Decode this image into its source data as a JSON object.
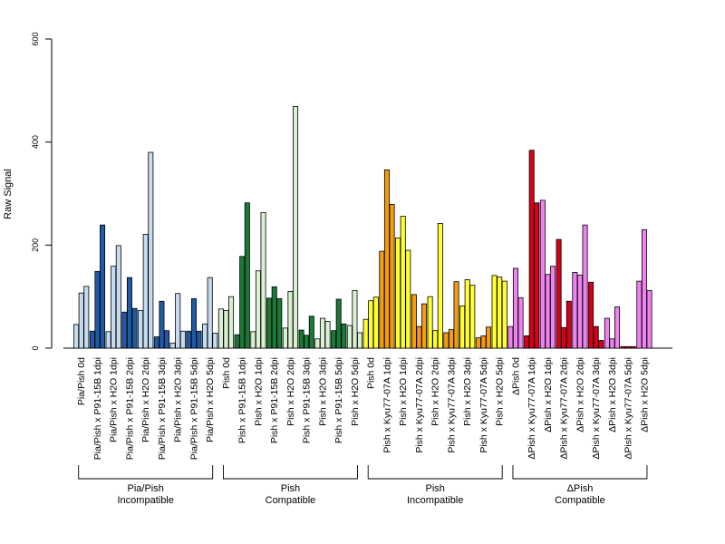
{
  "chart_data": {
    "type": "bar",
    "ylabel": "Raw Signal",
    "ylim": [
      0,
      600
    ],
    "yticks": [
      0,
      200,
      400,
      600
    ],
    "colors": {
      "light_blue": "#C6DBEF",
      "dark_blue": "#1F5AA6",
      "light_green": "#D9F0D3",
      "dark_green": "#1B7837",
      "yellow": "#FFFF33",
      "orange": "#F39C12",
      "red": "#D7001A",
      "pink": "#EE82EE"
    },
    "categories": [
      {
        "label": "Pia/Pish 0d",
        "color": "light_blue",
        "values": [
          46,
          107,
          120
        ]
      },
      {
        "label": "Pia/Pish x P91-15B 1dpi",
        "color": "dark_blue",
        "values": [
          33,
          149,
          239
        ]
      },
      {
        "label": "Pia/Pish x H2O 1dpi",
        "color": "light_blue",
        "values": [
          32,
          159,
          199
        ]
      },
      {
        "label": "Pia/Pish x P91-15B 2dpi",
        "color": "dark_blue",
        "values": [
          70,
          137,
          77
        ]
      },
      {
        "label": "Pia/Pish x H2O 2dpi",
        "color": "light_blue",
        "values": [
          73,
          221,
          380
        ]
      },
      {
        "label": "Pia/Pish x P91-15B 3dpi",
        "color": "dark_blue",
        "values": [
          22,
          91,
          34
        ]
      },
      {
        "label": "Pia/Pish x H2O 3dpi",
        "color": "light_blue",
        "values": [
          10,
          106,
          33
        ]
      },
      {
        "label": "Pia/Pish x P91-15B 5dpi",
        "color": "dark_blue",
        "values": [
          33,
          96,
          33
        ]
      },
      {
        "label": "Pia/Pish x H2O 5dpi",
        "color": "light_blue",
        "values": [
          47,
          137,
          29
        ]
      },
      {
        "label": "Pish 0d",
        "color": "light_green",
        "values": [
          76,
          73,
          100
        ]
      },
      {
        "label": "Pish x P91-15B 1dpi",
        "color": "dark_green",
        "values": [
          26,
          178,
          282
        ]
      },
      {
        "label": "Pish x H2O 1dpi",
        "color": "light_green",
        "values": [
          32,
          150,
          263
        ]
      },
      {
        "label": "Pish x P91-15B 2dpi",
        "color": "dark_green",
        "values": [
          97,
          119,
          96
        ]
      },
      {
        "label": "Pish x H2O 2dpi",
        "color": "light_green",
        "values": [
          39,
          110,
          469
        ]
      },
      {
        "label": "Pish x P91-15B 3dpi",
        "color": "dark_green",
        "values": [
          35,
          25,
          62
        ]
      },
      {
        "label": "Pish x H2O 3dpi",
        "color": "light_green",
        "values": [
          18,
          58,
          52
        ]
      },
      {
        "label": "Pish x P91-15B 5dpi",
        "color": "dark_green",
        "values": [
          34,
          95,
          47
        ]
      },
      {
        "label": "Pish x H2O 5dpi",
        "color": "light_green",
        "values": [
          44,
          112,
          30
        ]
      },
      {
        "label": "Pish 0d",
        "color": "yellow",
        "values": [
          56,
          92,
          99
        ]
      },
      {
        "label": "Pish x Kyu77-07A 1dpi",
        "color": "orange",
        "values": [
          188,
          346,
          279
        ]
      },
      {
        "label": "Pish x H2O 1dpi",
        "color": "yellow",
        "values": [
          214,
          256,
          190
        ]
      },
      {
        "label": "Pish x Kyu77-07A 2dpi",
        "color": "orange",
        "values": [
          104,
          42,
          86
        ]
      },
      {
        "label": "Pish x H2O 2dpi",
        "color": "yellow",
        "values": [
          100,
          34,
          242
        ]
      },
      {
        "label": "Pish x Kyu77-07A 3dpi",
        "color": "orange",
        "values": [
          30,
          36,
          129
        ]
      },
      {
        "label": "Pish x H2O 3dpi",
        "color": "yellow",
        "values": [
          82,
          133,
          122
        ]
      },
      {
        "label": "Pish x Kyu77-07A 5dpi",
        "color": "orange",
        "values": [
          20,
          24,
          41
        ]
      },
      {
        "label": "Pish x H2O 5dpi",
        "color": "yellow",
        "values": [
          141,
          138,
          130
        ]
      },
      {
        "label": "ΔPish 0d",
        "color": "pink",
        "values": [
          42,
          155,
          98
        ]
      },
      {
        "label": "ΔPish x Kyu77-07A 1dpi",
        "color": "red",
        "values": [
          24,
          384,
          282
        ]
      },
      {
        "label": "ΔPish x H2O 1dpi",
        "color": "pink",
        "values": [
          287,
          143,
          159
        ]
      },
      {
        "label": "ΔPish x Kyu77-07A 2dpi",
        "color": "red",
        "values": [
          211,
          40,
          91
        ]
      },
      {
        "label": "ΔPish x H2O 2dpi",
        "color": "pink",
        "values": [
          147,
          142,
          239
        ]
      },
      {
        "label": "ΔPish x Kyu77-07A 3dpi",
        "color": "red",
        "values": [
          128,
          42,
          15
        ]
      },
      {
        "label": "ΔPish x H2O 3dpi",
        "color": "pink",
        "values": [
          58,
          18,
          80
        ]
      },
      {
        "label": "ΔPish x Kyu77-07A 5dpi",
        "color": "red",
        "values": [
          3,
          3,
          3
        ]
      },
      {
        "label": "ΔPish x H2O 5dpi",
        "color": "pink",
        "values": [
          130,
          230,
          112
        ]
      }
    ],
    "groups": [
      {
        "name": "Pia/Pish",
        "subtitle": "Incompatible",
        "first": 0,
        "last": 8
      },
      {
        "name": "Pish",
        "subtitle": "Compatible",
        "first": 9,
        "last": 17
      },
      {
        "name": "Pish",
        "subtitle": "Incompatible",
        "first": 18,
        "last": 26
      },
      {
        "name": "ΔPish",
        "subtitle": "Compatible",
        "first": 27,
        "last": 35
      }
    ]
  }
}
